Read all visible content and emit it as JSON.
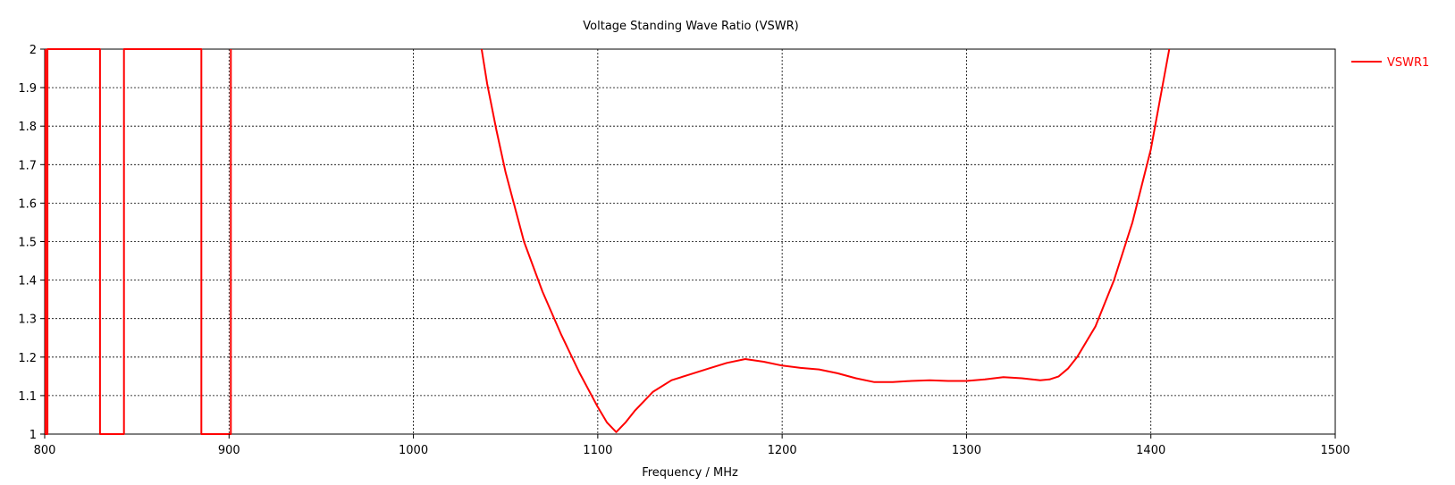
{
  "chart_data": {
    "type": "line",
    "title": "Voltage Standing Wave Ratio (VSWR)",
    "xlabel": "Frequency / MHz",
    "ylabel": "",
    "xlim": [
      800,
      1500
    ],
    "ylim": [
      1,
      2
    ],
    "x_ticks": [
      800,
      900,
      1000,
      1100,
      1200,
      1300,
      1400,
      1500
    ],
    "y_ticks": [
      1,
      1.1,
      1.2,
      1.3,
      1.4,
      1.5,
      1.6,
      1.7,
      1.8,
      1.9,
      2
    ],
    "x_tick_labels": [
      "800",
      "900",
      "1000",
      "1100",
      "1200",
      "1300",
      "1400",
      "1500"
    ],
    "y_tick_labels": [
      "1",
      "1.1",
      "1.2",
      "1.3",
      "1.4",
      "1.5",
      "1.6",
      "1.7",
      "1.8",
      "1.9",
      "2"
    ],
    "grid": true,
    "legend_position": "top-right outside",
    "series": [
      {
        "name": "VSWR1",
        "color": "#ff0000",
        "x": [
          800.5,
          800.5,
          801.5,
          801.5,
          830,
          830,
          843,
          843,
          885,
          885,
          901,
          901,
          901,
          1037,
          1040,
          1045,
          1050,
          1055,
          1060,
          1070,
          1080,
          1090,
          1100,
          1105,
          1110,
          1115,
          1120,
          1130,
          1140,
          1150,
          1160,
          1170,
          1180,
          1190,
          1200,
          1210,
          1220,
          1230,
          1240,
          1250,
          1260,
          1270,
          1280,
          1290,
          1300,
          1310,
          1320,
          1330,
          1340,
          1345,
          1350,
          1355,
          1360,
          1370,
          1380,
          1390,
          1400,
          1405,
          1410
        ],
        "y": [
          2,
          1,
          1,
          2,
          2,
          1,
          1,
          2,
          2,
          1,
          1,
          2,
          null,
          2,
          1.91,
          1.79,
          1.68,
          1.59,
          1.5,
          1.37,
          1.26,
          1.16,
          1.07,
          1.03,
          1.005,
          1.03,
          1.06,
          1.11,
          1.14,
          1.155,
          1.17,
          1.185,
          1.195,
          1.188,
          1.178,
          1.172,
          1.168,
          1.158,
          1.145,
          1.135,
          1.135,
          1.138,
          1.14,
          1.138,
          1.138,
          1.142,
          1.148,
          1.145,
          1.14,
          1.142,
          1.15,
          1.17,
          1.2,
          1.28,
          1.4,
          1.55,
          1.74,
          1.87,
          2
        ]
      }
    ]
  }
}
